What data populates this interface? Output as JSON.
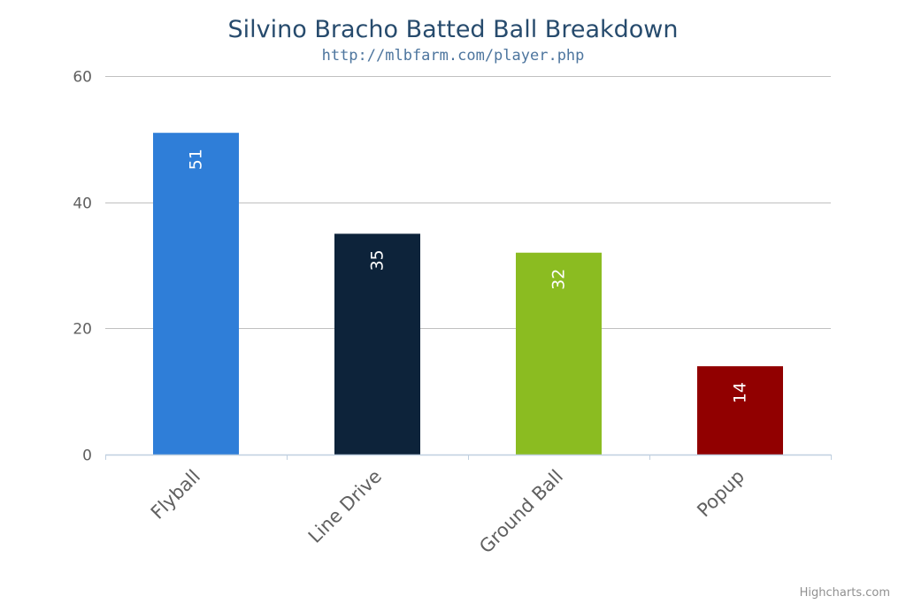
{
  "chart_data": {
    "type": "bar",
    "title": "Silvino Bracho Batted Ball Breakdown",
    "subtitle": "http://mlbfarm.com/player.php",
    "categories": [
      "Flyball",
      "Line Drive",
      "Ground Ball",
      "Popup"
    ],
    "values": [
      51,
      35,
      32,
      14
    ],
    "data_labels": [
      "51",
      "35",
      "32",
      "14"
    ],
    "colors": [
      "#2f7ed8",
      "#0d233a",
      "#8bbc21",
      "#910000"
    ],
    "ylim": [
      0,
      60
    ],
    "yticks": [
      0,
      20,
      40,
      60
    ],
    "ytick_labels": [
      "0",
      "20",
      "40",
      "60"
    ],
    "grid": true,
    "legend": false
  },
  "credits": "Highcharts.com",
  "theme": {
    "title_color": "#274b6d",
    "subtitle_color": "#4d759e",
    "grid_color": "#c0c0c0",
    "axis_color": "#c0d0e0"
  }
}
